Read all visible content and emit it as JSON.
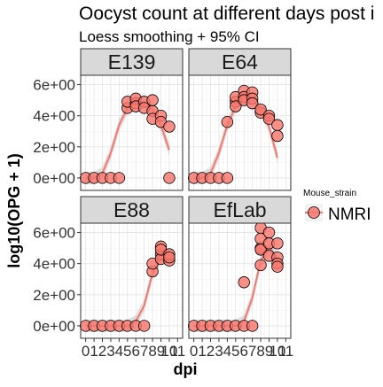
{
  "chart_data": {
    "type": "scatter",
    "title": "Oocyst count at different days post i",
    "subtitle": "Loess smoothing + 95% CI",
    "xlabel": "dpi",
    "ylabel": "log10(OPG + 1)",
    "x_ticks": [
      0,
      1,
      2,
      3,
      4,
      5,
      6,
      7,
      8,
      9,
      10,
      11
    ],
    "x_tick_labels": [
      "0",
      "1",
      "2",
      "3",
      "4",
      "5",
      "6",
      "7",
      "8",
      "9",
      "10",
      "11"
    ],
    "xlim": [
      -0.6,
      11.6
    ],
    "y_ticks": [
      0,
      2,
      4,
      6
    ],
    "y_tick_labels": [
      "0e+00",
      "2e+00",
      "4e+00",
      "6e+00"
    ],
    "ylim": [
      -0.8,
      6.6
    ],
    "grid": true,
    "legend": {
      "title": "Mouse_strain",
      "position": "right",
      "entries": [
        {
          "label": "NMRI",
          "color": "#f8766d"
        }
      ]
    },
    "colors": {
      "points": "#f8766d",
      "point_outline": "#000000",
      "smooth_line": "#f8766d",
      "ci_band": "#a6a6a6",
      "strip": "#d9d9d9"
    },
    "facets": [
      {
        "name": "E139",
        "points": [
          [
            0,
            0
          ],
          [
            1,
            0
          ],
          [
            2,
            0
          ],
          [
            3,
            0
          ],
          [
            4,
            0
          ],
          [
            5,
            4.5
          ],
          [
            5,
            4.9
          ],
          [
            6,
            4.8
          ],
          [
            6,
            5.1
          ],
          [
            6,
            4.6
          ],
          [
            7,
            4.9
          ],
          [
            7,
            4.5
          ],
          [
            8,
            4.3
          ],
          [
            8,
            5.0
          ],
          [
            8,
            3.8
          ],
          [
            9,
            4.0
          ],
          [
            9,
            3.6
          ],
          [
            10,
            3.3
          ],
          [
            10,
            0
          ]
        ],
        "smooth_x": [
          0,
          1,
          2,
          3,
          4,
          5,
          6,
          7,
          8,
          9,
          10
        ],
        "smooth_y": [
          0,
          0,
          0.3,
          1.6,
          3.4,
          4.5,
          4.9,
          4.8,
          4.4,
          3.4,
          1.8
        ]
      },
      {
        "name": "E64",
        "points": [
          [
            0,
            0
          ],
          [
            1,
            0
          ],
          [
            2,
            0
          ],
          [
            3,
            0
          ],
          [
            4,
            0
          ],
          [
            4,
            3.6
          ],
          [
            5,
            4.9
          ],
          [
            5,
            5.2
          ],
          [
            5,
            4.6
          ],
          [
            6,
            5.6
          ],
          [
            6,
            5.2
          ],
          [
            6,
            5.0
          ],
          [
            7,
            5.5
          ],
          [
            7,
            5.1
          ],
          [
            7,
            4.8
          ],
          [
            8,
            4.2
          ],
          [
            8,
            4.4
          ],
          [
            9,
            4.0
          ],
          [
            9,
            3.8
          ],
          [
            10,
            3.4
          ],
          [
            10,
            2.7
          ]
        ],
        "smooth_x": [
          0,
          1,
          2,
          3,
          4,
          5,
          6,
          7,
          8,
          9,
          10
        ],
        "smooth_y": [
          0,
          0,
          0.3,
          1.6,
          3.4,
          4.6,
          5.3,
          5.1,
          4.4,
          3.3,
          1.3
        ]
      },
      {
        "name": "E88",
        "points": [
          [
            0,
            0
          ],
          [
            1,
            0
          ],
          [
            2,
            0
          ],
          [
            3,
            0
          ],
          [
            4,
            0
          ],
          [
            5,
            0
          ],
          [
            6,
            0
          ],
          [
            7,
            0
          ],
          [
            8,
            3.5
          ],
          [
            8,
            4.0
          ],
          [
            9,
            4.6
          ],
          [
            9,
            5.1
          ],
          [
            9,
            4.3
          ],
          [
            9,
            4.9
          ],
          [
            10,
            4.2
          ],
          [
            10,
            4.6
          ],
          [
            10,
            4.4
          ]
        ],
        "smooth_x": [
          0,
          1,
          2,
          3,
          4,
          5,
          6,
          7,
          8,
          9,
          10
        ],
        "smooth_y": [
          0,
          0,
          0,
          0,
          0,
          0,
          0.3,
          1.3,
          3.4,
          4.4,
          4.5
        ]
      },
      {
        "name": "EfLab",
        "points": [
          [
            0,
            0
          ],
          [
            1,
            0
          ],
          [
            2,
            0
          ],
          [
            3,
            0
          ],
          [
            4,
            0
          ],
          [
            5,
            0
          ],
          [
            6,
            0
          ],
          [
            6,
            2.8
          ],
          [
            7,
            0
          ],
          [
            8,
            3.9
          ],
          [
            8,
            5.0
          ],
          [
            8,
            6.3
          ],
          [
            8,
            5.6
          ],
          [
            8,
            4.9
          ],
          [
            9,
            6.0
          ],
          [
            9,
            5.3
          ],
          [
            9,
            4.5
          ],
          [
            10,
            5.3
          ],
          [
            10,
            4.4
          ],
          [
            10,
            4.0
          ],
          [
            10,
            3.8
          ]
        ],
        "smooth_x": [
          0,
          1,
          2,
          3,
          4,
          5,
          6,
          7,
          8,
          9,
          10
        ],
        "smooth_y": [
          0,
          0,
          0,
          0,
          0,
          0,
          0.3,
          1.8,
          4.2,
          5.1,
          4.3
        ]
      }
    ]
  }
}
